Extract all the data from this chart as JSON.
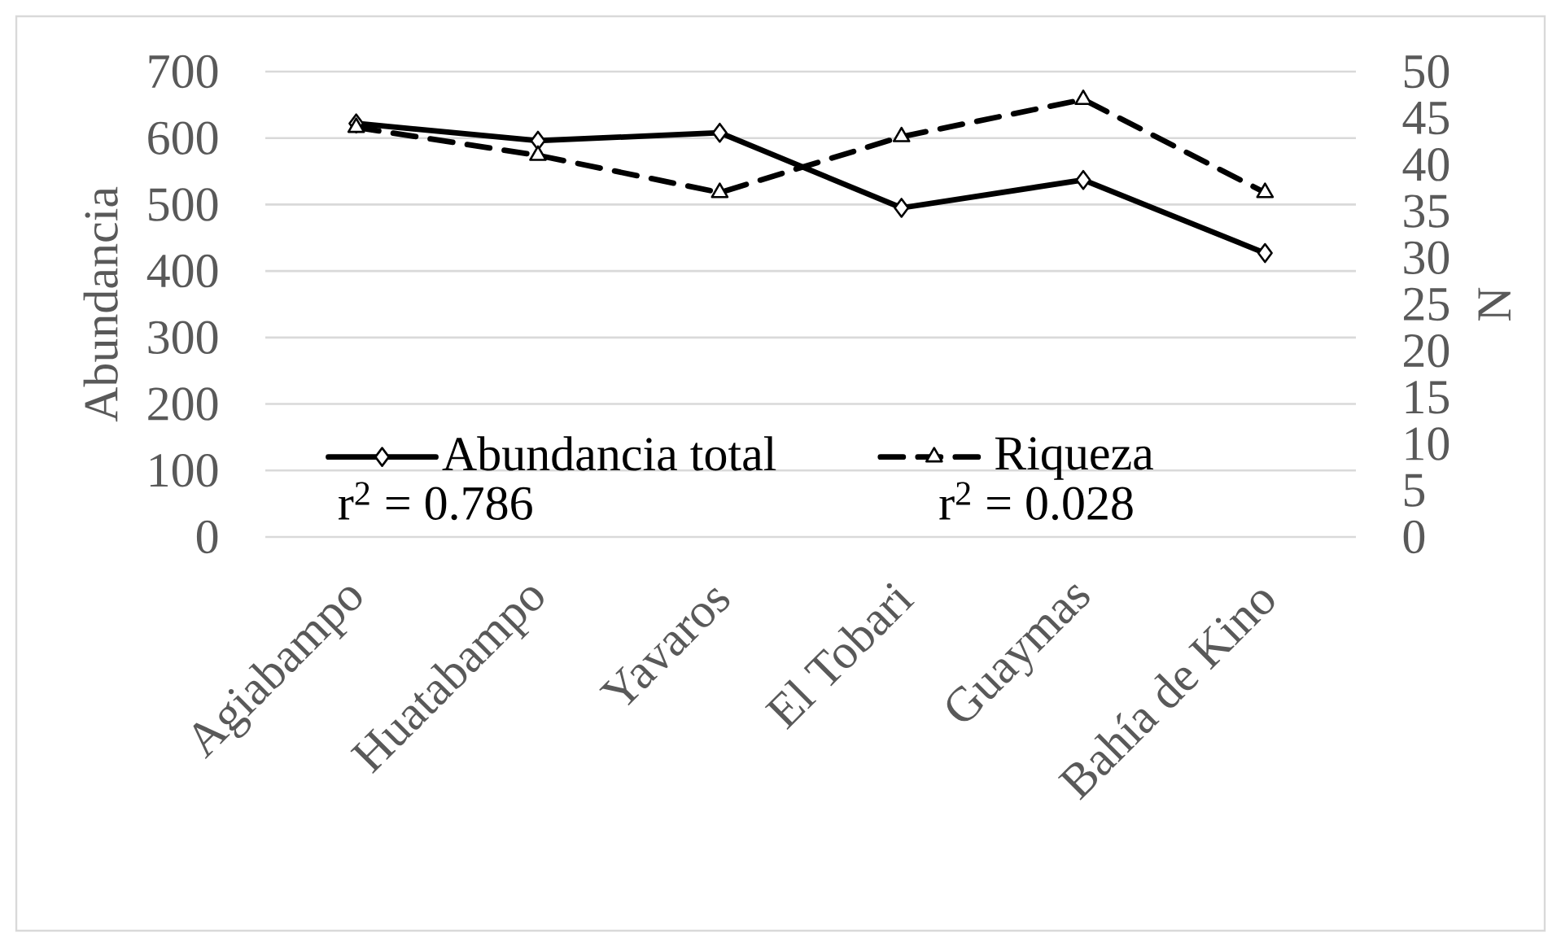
{
  "chart_data": {
    "type": "line",
    "ylabel": "Abundancia",
    "y2label": "N",
    "categories": [
      "Agiabampo",
      "Huatabampo",
      "Yavaros",
      "El Tobari",
      "Guaymas",
      "Bahía de Kino"
    ],
    "series": [
      {
        "name": "Abundancia total",
        "color": "#000000",
        "values": [
          622,
          596,
          608,
          495,
          537,
          427
        ],
        "marker": "diamond",
        "line_style": "solid"
      },
      {
        "name": "Riqueza",
        "color": "#000000",
        "values": [
          44,
          41,
          37,
          43,
          47,
          37
        ],
        "axis": "y2",
        "marker": "triangle",
        "line_style": "dashed"
      }
    ],
    "ylim": [
      0,
      700
    ],
    "yticks": [
      0,
      100,
      200,
      300,
      400,
      500,
      600,
      700
    ],
    "y2lim": [
      0,
      50
    ],
    "y2ticks": [
      0,
      5,
      10,
      15,
      20,
      25,
      30,
      35,
      40,
      45,
      50
    ],
    "grid": "y",
    "legend": "bottom left",
    "annotations": [
      "r$^{2}$ = 0.786",
      "r$^{2}$ = 0.028"
    ]
  }
}
